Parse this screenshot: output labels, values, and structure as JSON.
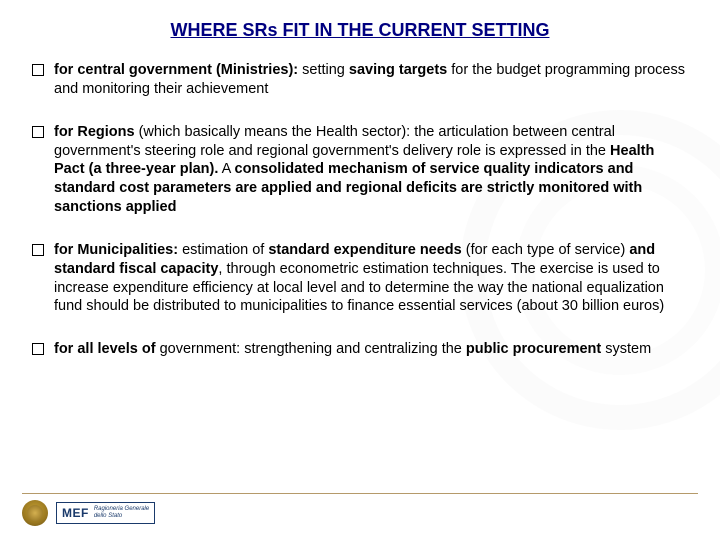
{
  "title": "WHERE SRs FIT IN THE CURRENT SETTING",
  "bullets": [
    {
      "html": "<b>for central government (Ministries):</b> setting <b>saving targets</b> for the budget programming process and monitoring their achievement"
    },
    {
      "html": "<b>for Regions</b> (which basically means the Health sector): the articulation between central government's steering role and regional government's delivery role is expressed in the <b>Health Pact (a three-year plan).</b> A <b>consolidated mechanism of service quality indicators and standard cost parameters are applied and regional deficits are strictly monitored with sanctions applied</b>"
    },
    {
      "html": "<b>for Municipalities:</b> estimation of <b>standard expenditure needs</b> (for each type of service) <b>and standard fiscal capacity</b>, through econometric estimation techniques. The exercise is used to increase expenditure efficiency at local level and to determine the way the national equalization fund should be distributed to municipalities to finance essential services (about 30 billion euros)"
    },
    {
      "html": "<b>for all levels of</b> government: strengthening and centralizing the <b>public procurement</b> system"
    }
  ],
  "footer": {
    "mef_label": "MEF",
    "mef_sub1": "Ragioneria Generale",
    "mef_sub2": "dello Stato"
  },
  "colors": {
    "title_color": "#000080",
    "footer_line": "#b59a6a",
    "mef_color": "#1a3a6b",
    "background": "#ffffff"
  }
}
